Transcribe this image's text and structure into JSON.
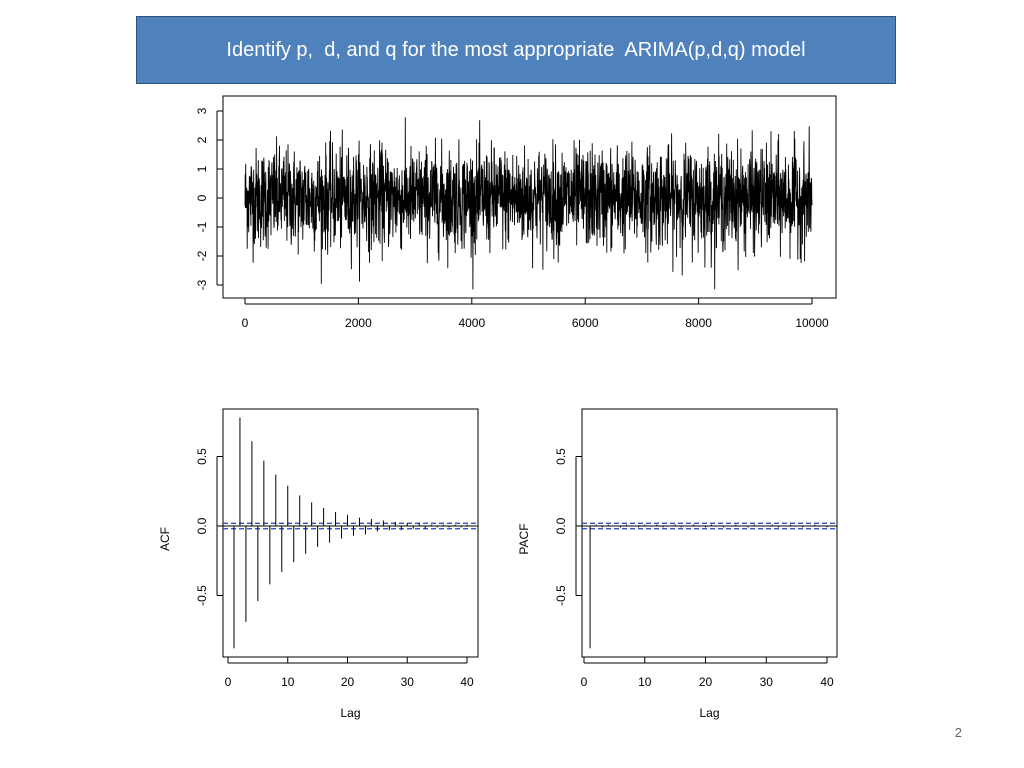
{
  "slide": {
    "title": "Identify p,  d, and q for the most appropriate  ARIMA(p,d,q) model",
    "page_number": "2",
    "title_bg_color": "#4f81bd",
    "title_text_color": "#ffffff"
  },
  "chart_data": [
    {
      "type": "line",
      "title": "",
      "xlabel": "",
      "ylabel": "",
      "xlim": [
        0,
        10000
      ],
      "ylim": [
        -3.2,
        3.2
      ],
      "xticks": [
        0,
        2000,
        4000,
        6000,
        8000,
        10000
      ],
      "yticks": [
        -3,
        -2,
        -1,
        0,
        1,
        2,
        3
      ],
      "series_description": "simulated time series of 10000 observations, roughly stationary noise around 0 with range about -3 to 3",
      "n": 10000,
      "mean": 0
    },
    {
      "type": "bar",
      "title": "",
      "xlabel": "Lag",
      "ylabel": "ACF",
      "xlim": [
        0,
        40
      ],
      "ylim": [
        -0.9,
        0.8
      ],
      "xticks": [
        0,
        10,
        20,
        30,
        40
      ],
      "yticks": [
        -0.5,
        0.0,
        0.5
      ],
      "lags": [
        1,
        2,
        3,
        4,
        5,
        6,
        7,
        8,
        9,
        10,
        11,
        12,
        13,
        14,
        15,
        16,
        17,
        18,
        19,
        20,
        21,
        22,
        23,
        24,
        25,
        26,
        27,
        28,
        29,
        30,
        31,
        32,
        33,
        34,
        35,
        36,
        37,
        38,
        39,
        40
      ],
      "values": [
        -0.88,
        0.78,
        -0.69,
        0.61,
        -0.54,
        0.47,
        -0.42,
        0.37,
        -0.33,
        0.29,
        -0.26,
        0.22,
        -0.2,
        0.17,
        -0.15,
        0.13,
        -0.12,
        0.1,
        -0.09,
        0.08,
        -0.07,
        0.06,
        -0.06,
        0.05,
        -0.04,
        0.04,
        -0.03,
        0.03,
        -0.03,
        0.02,
        -0.02,
        0.02,
        -0.02,
        0.01,
        -0.01,
        0.01,
        -0.01,
        0.01,
        -0.01,
        0.01
      ],
      "conf_band": 0.02,
      "band_color": "#1f3fbf"
    },
    {
      "type": "bar",
      "title": "",
      "xlabel": "Lag",
      "ylabel": "PACF",
      "xlim": [
        0,
        40
      ],
      "ylim": [
        -0.9,
        0.8
      ],
      "xticks": [
        0,
        10,
        20,
        30,
        40
      ],
      "yticks": [
        -0.5,
        0.0,
        0.5
      ],
      "lags": [
        1,
        2,
        3,
        4,
        5,
        6,
        7,
        8,
        9,
        10,
        11,
        12,
        13,
        14,
        15,
        16,
        17,
        18,
        19,
        20,
        21,
        22,
        23,
        24,
        25,
        26,
        27,
        28,
        29,
        30,
        31,
        32,
        33,
        34,
        35,
        36,
        37,
        38,
        39,
        40
      ],
      "values": [
        -0.88,
        0.01,
        -0.01,
        0.01,
        0.0,
        -0.01,
        0.01,
        0.0,
        -0.01,
        0.01,
        0.0,
        0.01,
        -0.01,
        0.0,
        0.01,
        -0.01,
        0.0,
        0.01,
        0.0,
        -0.01,
        0.01,
        0.0,
        -0.01,
        0.0,
        0.01,
        0.0,
        -0.01,
        0.01,
        0.0,
        0.0,
        0.01,
        -0.01,
        0.0,
        0.01,
        0.0,
        -0.01,
        0.0,
        0.01,
        0.0,
        -0.01
      ],
      "conf_band": 0.02,
      "band_color": "#1f3fbf"
    }
  ]
}
